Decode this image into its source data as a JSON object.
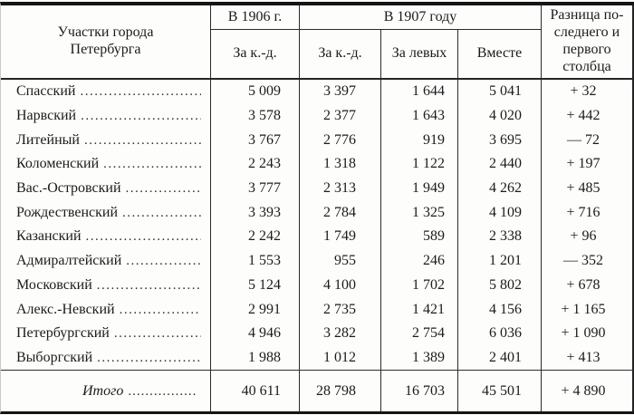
{
  "table": {
    "header": {
      "districts": "Участки города\nПетербурга",
      "year_1906": "В 1906 г.",
      "year_1907": "В 1907 году",
      "sub_1906_kd": "За к.-д.",
      "sub_1907_kd": "За к.-д.",
      "sub_1907_left": "За левых",
      "sub_1907_together": "Вместе",
      "difference": "Разница по-\nследнего и\nпервого\nстолбца"
    },
    "rows": [
      {
        "district": "Спасский",
        "y1906_kd": "5 009",
        "y1907_kd": "3 397",
        "y1907_left": "1 644",
        "y1907_total": "5 041",
        "difference": "+ 32"
      },
      {
        "district": "Нарвский",
        "y1906_kd": "3 578",
        "y1907_kd": "2 377",
        "y1907_left": "1 643",
        "y1907_total": "4 020",
        "difference": "+ 442"
      },
      {
        "district": "Литейный",
        "y1906_kd": "3 767",
        "y1907_kd": "2 776",
        "y1907_left": "919",
        "y1907_total": "3 695",
        "difference": "— 72"
      },
      {
        "district": "Коломенский",
        "y1906_kd": "2 243",
        "y1907_kd": "1 318",
        "y1907_left": "1 122",
        "y1907_total": "2 440",
        "difference": "+ 197"
      },
      {
        "district": "Вас.-Островский",
        "y1906_kd": "3 777",
        "y1907_kd": "2 313",
        "y1907_left": "1 949",
        "y1907_total": "4 262",
        "difference": "+ 485"
      },
      {
        "district": "Рождественский",
        "y1906_kd": "3 393",
        "y1907_kd": "2 784",
        "y1907_left": "1 325",
        "y1907_total": "4 109",
        "difference": "+ 716"
      },
      {
        "district": "Казанский",
        "y1906_kd": "2 242",
        "y1907_kd": "1 749",
        "y1907_left": "589",
        "y1907_total": "2 338",
        "difference": "+ 96"
      },
      {
        "district": "Адмиралтейский",
        "y1906_kd": "1 553",
        "y1907_kd": "955",
        "y1907_left": "246",
        "y1907_total": "1 201",
        "difference": "— 352"
      },
      {
        "district": "Московский",
        "y1906_kd": "5 124",
        "y1907_kd": "4 100",
        "y1907_left": "1 702",
        "y1907_total": "5 802",
        "difference": "+ 678"
      },
      {
        "district": "Алекс.-Невский",
        "y1906_kd": "2 991",
        "y1907_kd": "2 735",
        "y1907_left": "1 421",
        "y1907_total": "4 156",
        "difference": "+ 1 165"
      },
      {
        "district": "Петербургский",
        "y1906_kd": "4 946",
        "y1907_kd": "3 282",
        "y1907_left": "2 754",
        "y1907_total": "6 036",
        "difference": "+ 1 090"
      },
      {
        "district": "Выборгский",
        "y1906_kd": "1 988",
        "y1907_kd": "1 012",
        "y1907_left": "1 389",
        "y1907_total": "2 401",
        "difference": "+ 413"
      }
    ],
    "totals": {
      "label": "Итого",
      "y1906_kd": "40 611",
      "y1907_kd": "28 798",
      "y1907_left": "16 703",
      "y1907_total": "45 501",
      "difference": "+ 4 890"
    }
  },
  "colors": {
    "text": "#1b1b1b",
    "border": "#2b2b2b",
    "rule_heavy": "#151515",
    "background": "#fdfdfc"
  }
}
